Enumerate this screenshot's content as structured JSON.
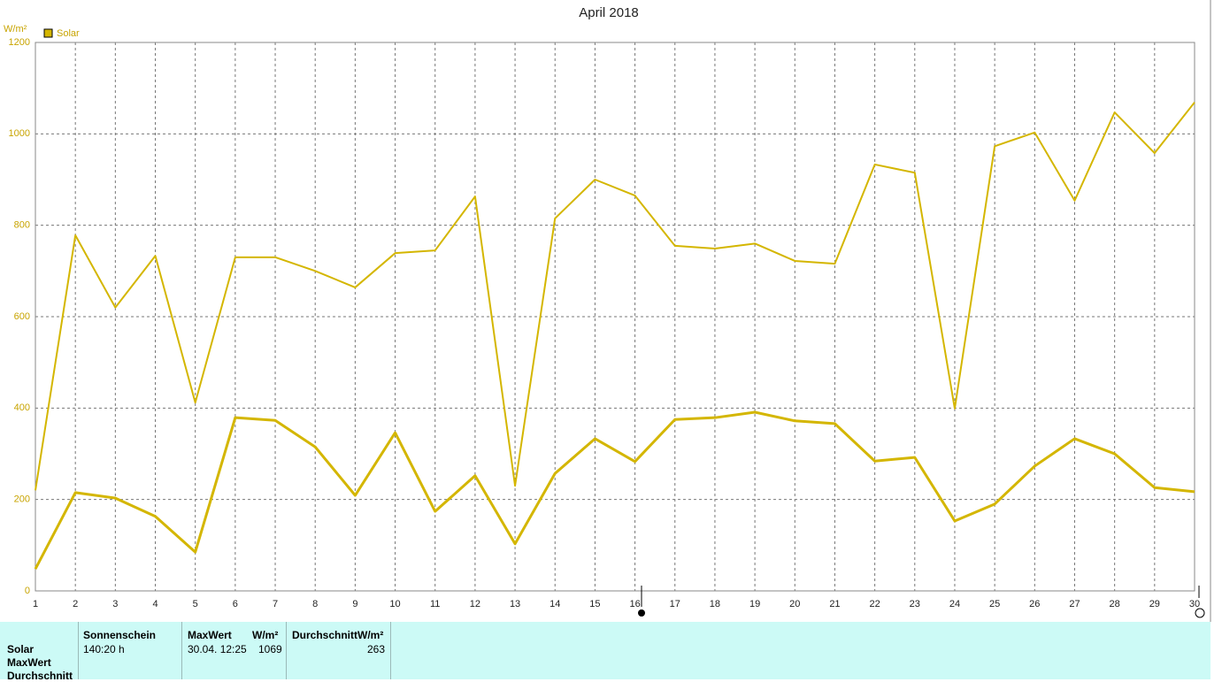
{
  "chart_data": {
    "type": "line",
    "title": "April 2018",
    "y_unit": "W/m²",
    "categories": [
      "1",
      "2",
      "3",
      "4",
      "5",
      "6",
      "7",
      "8",
      "9",
      "10",
      "11",
      "12",
      "13",
      "14",
      "15",
      "16",
      "17",
      "18",
      "19",
      "20",
      "21",
      "22",
      "23",
      "24",
      "25",
      "26",
      "27",
      "28",
      "29",
      "30"
    ],
    "series": [
      {
        "name": "Solar",
        "color": "#d4b600",
        "line_width": 2,
        "values": [
          220,
          778,
          620,
          733,
          412,
          730,
          730,
          700,
          664,
          739,
          745,
          863,
          230,
          815,
          900,
          865,
          755,
          749,
          760,
          722,
          716,
          933,
          915,
          399,
          973,
          1003,
          854,
          1047,
          958,
          1069
        ]
      },
      {
        "color": "#d4b600",
        "line_width": 3,
        "values": [
          48,
          215,
          203,
          163,
          85,
          379,
          373,
          315,
          209,
          346,
          174,
          252,
          103,
          257,
          333,
          283,
          375,
          379,
          391,
          372,
          366,
          284,
          292,
          153,
          190,
          273,
          333,
          300,
          226,
          217
        ]
      }
    ],
    "ylim": [
      0,
      1200
    ],
    "yticks": [
      0,
      200,
      400,
      600,
      800,
      1000,
      1200
    ],
    "grid": true
  },
  "panel": {
    "row_labels": [
      "Solar",
      "MaxWert",
      "Durchschnitt"
    ],
    "sunshine": {
      "header": "Sonnenschein",
      "value": "140:20 h"
    },
    "max": {
      "header": "MaxWert",
      "unit": "W/m²",
      "time": "30.04.  12:25",
      "value": "1069"
    },
    "average": {
      "header": "DurchschnittW/m²",
      "value": "263"
    }
  }
}
